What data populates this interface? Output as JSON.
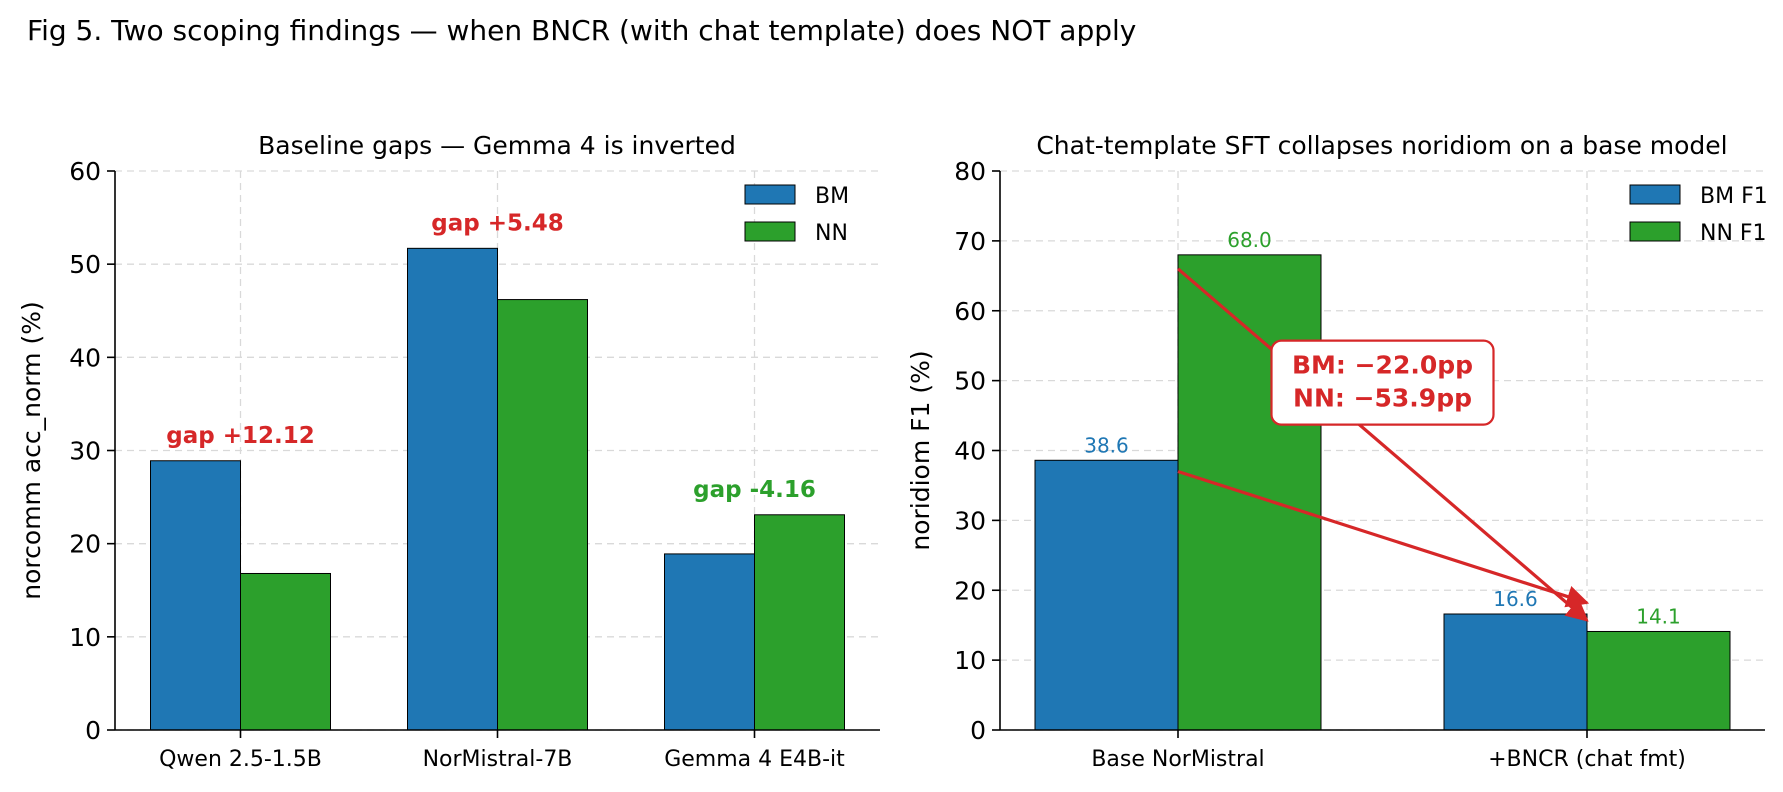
{
  "figure_title": "Fig 5. Two scoping findings — when BNCR (with chat template) does NOT apply",
  "chart_data": [
    {
      "type": "bar",
      "title": "Baseline gaps — Gemma 4 is inverted",
      "xlabel": "",
      "ylabel": "norcomm acc_norm (%)",
      "ylim": [
        0,
        60
      ],
      "yticks": [
        0,
        10,
        20,
        30,
        40,
        50,
        60
      ],
      "categories": [
        "Qwen 2.5-1.5B",
        "NorMistral-7B",
        "Gemma 4 E4B-it"
      ],
      "series": [
        {
          "name": "BM",
          "color": "#1f77b4",
          "values": [
            28.9,
            51.7,
            18.9
          ]
        },
        {
          "name": "NN",
          "color": "#2ca02c",
          "values": [
            16.8,
            46.2,
            23.1
          ]
        }
      ],
      "annotations": [
        {
          "text": "gap +12.12",
          "category": 0,
          "y": 30.8,
          "color": "#d62728"
        },
        {
          "text": "gap +5.48",
          "category": 1,
          "y": 53.6,
          "color": "#d62728"
        },
        {
          "text": "gap -4.16",
          "category": 2,
          "y": 25.0,
          "color": "#2ca02c"
        }
      ],
      "grid": true,
      "legend": "top-right"
    },
    {
      "type": "bar",
      "title": "Chat-template SFT collapses noridiom on a base model",
      "xlabel": "",
      "ylabel": "noridiom F1 (%)",
      "ylim": [
        0,
        80
      ],
      "yticks": [
        0,
        10,
        20,
        30,
        40,
        50,
        60,
        70,
        80
      ],
      "categories": [
        "Base NorMistral",
        "+BNCR (chat fmt)"
      ],
      "series": [
        {
          "name": "BM F1",
          "color": "#1f77b4",
          "values": [
            38.6,
            16.6
          ],
          "labels": [
            "38.6",
            "16.6"
          ]
        },
        {
          "name": "NN F1",
          "color": "#2ca02c",
          "values": [
            68.0,
            14.1
          ],
          "labels": [
            "68.0",
            "14.1"
          ]
        }
      ],
      "arrows": [
        {
          "series": "BM F1",
          "from": [
            0,
            37.0
          ],
          "to": [
            1,
            18.2
          ],
          "color": "#d62728"
        },
        {
          "series": "NN F1",
          "from": [
            0,
            66.0
          ],
          "to": [
            1,
            15.7
          ],
          "color": "#d62728"
        }
      ],
      "callout": {
        "lines": [
          "BM: −22.0pp",
          "NN: −53.9pp"
        ],
        "x": 0.5,
        "y": 50.0,
        "color": "#d62728"
      },
      "grid": true,
      "legend": "top-right"
    }
  ]
}
